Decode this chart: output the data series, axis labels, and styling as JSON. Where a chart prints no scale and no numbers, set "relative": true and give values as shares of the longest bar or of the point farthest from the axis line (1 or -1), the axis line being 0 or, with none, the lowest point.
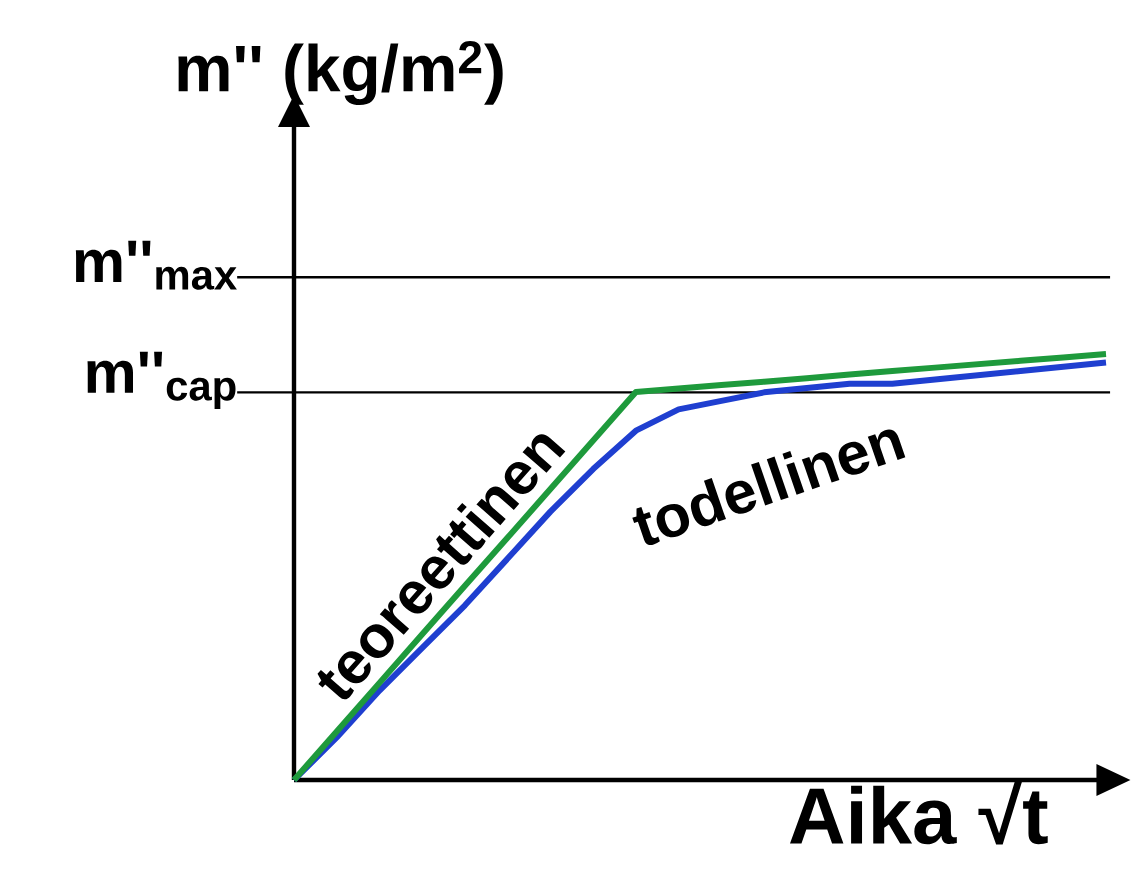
{
  "chart_data": {
    "type": "line",
    "relative": true,
    "ylabel": "m'' (kg/m$^{2}$)",
    "xlabel": "Aika √t",
    "categories": [
      null,
      null,
      null,
      null,
      null,
      null,
      null,
      null,
      null,
      null,
      null,
      null,
      null,
      null,
      null,
      null,
      null,
      null,
      null,
      null
    ],
    "series": [
      {
        "name": "teoreettinen",
        "color": "#1e9a3c",
        "values": [
          0,
          0.114,
          0.228,
          0.342,
          0.456,
          0.569,
          0.683,
          0.797,
          0.911,
          0.919,
          0.927,
          0.935,
          0.943,
          0.952,
          0.96,
          0.968,
          0.976,
          0.984,
          0.992,
          1.0
        ]
      },
      {
        "name": "todellinen",
        "color": "#1f3fd0",
        "values": [
          0,
          0.1,
          0.21,
          0.31,
          0.41,
          0.52,
          0.63,
          0.73,
          0.82,
          0.87,
          0.89,
          0.91,
          0.92,
          0.93,
          0.93,
          0.94,
          0.95,
          0.96,
          0.97,
          0.98
        ]
      }
    ],
    "ref_lines": [
      {
        "axis": "y",
        "value": 1.18,
        "label": "m''$_{max}$"
      },
      {
        "axis": "y",
        "value": 0.91,
        "label": "m''$_{cap}$"
      }
    ]
  }
}
